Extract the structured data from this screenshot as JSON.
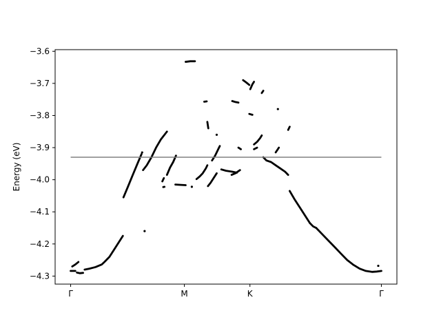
{
  "chart_data": {
    "type": "scatter",
    "title": "",
    "xlabel": "",
    "ylabel": "Energy (eV)",
    "ylim": [
      -4.325,
      -3.595
    ],
    "xlim": [
      -0.05,
      1.05
    ],
    "x_ticks": [
      {
        "x": 0.0,
        "label": "Γ"
      },
      {
        "x": 0.366,
        "label": "M"
      },
      {
        "x": 0.577,
        "label": "K"
      },
      {
        "x": 1.0,
        "label": "Γ"
      }
    ],
    "y_ticks": [
      {
        "y": -3.6,
        "label": "−3.6"
      },
      {
        "y": -3.7,
        "label": "−3.7"
      },
      {
        "y": -3.8,
        "label": "−3.8"
      },
      {
        "y": -3.9,
        "label": "−3.9"
      },
      {
        "y": -4.0,
        "label": "−4.0"
      },
      {
        "y": -4.1,
        "label": "−4.1"
      },
      {
        "y": -4.2,
        "label": "−4.2"
      },
      {
        "y": -4.3,
        "label": "−4.3"
      }
    ],
    "fermi_level": {
      "value": -3.93,
      "x_range": [
        0.0,
        1.0
      ],
      "color": "#808080"
    },
    "grid": false,
    "marker_color": "#000000",
    "series": [
      {
        "segments": [
          [
            [
              0.0,
              -4.284
            ],
            [
              0.015,
              -4.284
            ]
          ],
          [
            [
              0.005,
              -4.27
            ],
            [
              0.015,
              -4.264
            ],
            [
              0.025,
              -4.256
            ]
          ],
          [
            [
              0.02,
              -4.289
            ],
            [
              0.03,
              -4.291
            ],
            [
              0.04,
              -4.29
            ]
          ],
          [
            [
              0.045,
              -4.28
            ],
            [
              0.06,
              -4.277
            ],
            [
              0.08,
              -4.272
            ],
            [
              0.1,
              -4.264
            ],
            [
              0.11,
              -4.255
            ],
            [
              0.125,
              -4.24
            ],
            [
              0.145,
              -4.21
            ],
            [
              0.168,
              -4.175
            ]
          ],
          [
            [
              0.17,
              -4.055
            ],
            [
              0.185,
              -4.02
            ],
            [
              0.2,
              -3.985
            ],
            [
              0.215,
              -3.95
            ],
            [
              0.228,
              -3.92
            ]
          ],
          [
            [
              0.23,
              -3.915
            ]
          ],
          [
            [
              0.238,
              -4.16
            ]
          ],
          [
            [
              0.233,
              -3.97
            ],
            [
              0.245,
              -3.955
            ],
            [
              0.26,
              -3.93
            ],
            [
              0.275,
              -3.9
            ],
            [
              0.29,
              -3.875
            ],
            [
              0.31,
              -3.85
            ]
          ],
          [
            [
              0.295,
              -4.005
            ],
            [
              0.3,
              -3.995
            ]
          ],
          [
            [
              0.298,
              -4.023
            ],
            [
              0.302,
              -4.022
            ]
          ],
          [
            [
              0.31,
              -3.985
            ],
            [
              0.32,
              -3.962
            ],
            [
              0.33,
              -3.945
            ],
            [
              0.339,
              -3.925
            ]
          ],
          [
            [
              0.337,
              -4.015
            ],
            [
              0.355,
              -4.016
            ],
            [
              0.37,
              -4.017
            ]
          ],
          [
            [
              0.37,
              -3.633
            ],
            [
              0.385,
              -3.631
            ],
            [
              0.4,
              -3.631
            ]
          ],
          [
            [
              0.39,
              -4.022
            ]
          ],
          [
            [
              0.405,
              -3.998
            ],
            [
              0.415,
              -3.99
            ],
            [
              0.425,
              -3.98
            ],
            [
              0.435,
              -3.965
            ],
            [
              0.44,
              -3.955
            ]
          ],
          [
            [
              0.43,
              -3.757
            ],
            [
              0.438,
              -3.756
            ]
          ],
          [
            [
              0.44,
              -3.82
            ],
            [
              0.443,
              -3.84
            ]
          ],
          [
            [
              0.442,
              -4.02
            ],
            [
              0.45,
              -4.01
            ],
            [
              0.46,
              -3.995
            ],
            [
              0.47,
              -3.98
            ]
          ],
          [
            [
              0.455,
              -3.94
            ],
            [
              0.465,
              -3.925
            ],
            [
              0.475,
              -3.905
            ],
            [
              0.48,
              -3.895
            ]
          ],
          [
            [
              0.47,
              -3.86
            ]
          ],
          [
            [
              0.485,
              -3.968
            ],
            [
              0.5,
              -3.972
            ],
            [
              0.52,
              -3.975
            ],
            [
              0.535,
              -3.978
            ]
          ],
          [
            [
              0.518,
              -3.985
            ],
            [
              0.53,
              -3.98
            ],
            [
              0.545,
              -3.97
            ]
          ],
          [
            [
              0.52,
              -3.755
            ],
            [
              0.53,
              -3.758
            ],
            [
              0.54,
              -3.76
            ]
          ],
          [
            [
              0.54,
              -3.9
            ],
            [
              0.548,
              -3.905
            ]
          ],
          [
            [
              0.555,
              -3.69
            ],
            [
              0.565,
              -3.697
            ],
            [
              0.575,
              -3.705
            ]
          ],
          [
            [
              0.575,
              -3.795
            ],
            [
              0.585,
              -3.798
            ]
          ],
          [
            [
              0.578,
              -3.718
            ],
            [
              0.585,
              -3.703
            ],
            [
              0.59,
              -3.695
            ]
          ],
          [
            [
              0.59,
              -3.89
            ],
            [
              0.6,
              -3.882
            ],
            [
              0.61,
              -3.87
            ],
            [
              0.615,
              -3.862
            ]
          ],
          [
            [
              0.59,
              -3.905
            ],
            [
              0.6,
              -3.9
            ]
          ],
          [
            [
              0.615,
              -3.73
            ],
            [
              0.62,
              -3.723
            ]
          ],
          [
            [
              0.62,
              -3.93
            ],
            [
              0.63,
              -3.94
            ],
            [
              0.645,
              -3.945
            ],
            [
              0.66,
              -3.955
            ],
            [
              0.675,
              -3.965
            ],
            [
              0.69,
              -3.975
            ],
            [
              0.7,
              -3.985
            ]
          ],
          [
            [
              0.66,
              -3.915
            ],
            [
              0.67,
              -3.9
            ]
          ],
          [
            [
              0.667,
              -3.78
            ]
          ],
          [
            [
              0.7,
              -3.845
            ],
            [
              0.705,
              -3.835
            ]
          ],
          [
            [
              0.705,
              -4.035
            ],
            [
              0.72,
              -4.06
            ],
            [
              0.74,
              -4.09
            ],
            [
              0.76,
              -4.12
            ],
            [
              0.77,
              -4.135
            ]
          ],
          [
            [
              0.77,
              -4.135
            ],
            [
              0.78,
              -4.145
            ],
            [
              0.79,
              -4.15
            ]
          ],
          [
            [
              0.79,
              -4.15
            ],
            [
              0.81,
              -4.17
            ],
            [
              0.83,
              -4.19
            ],
            [
              0.85,
              -4.21
            ],
            [
              0.87,
              -4.23
            ],
            [
              0.89,
              -4.25
            ],
            [
              0.91,
              -4.265
            ],
            [
              0.93,
              -4.277
            ],
            [
              0.95,
              -4.284
            ],
            [
              0.97,
              -4.287
            ],
            [
              0.985,
              -4.286
            ],
            [
              1.0,
              -4.284
            ]
          ],
          [
            [
              0.99,
              -4.268
            ]
          ]
        ]
      }
    ]
  }
}
